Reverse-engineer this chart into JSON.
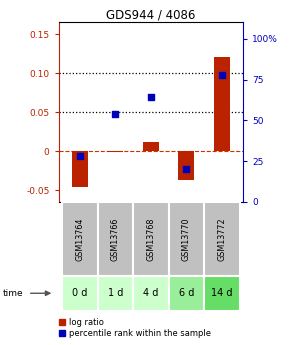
{
  "title": "GDS944 / 4086",
  "samples": [
    "GSM13764",
    "GSM13766",
    "GSM13768",
    "GSM13770",
    "GSM13772"
  ],
  "time_labels": [
    "0 d",
    "1 d",
    "4 d",
    "6 d",
    "14 d"
  ],
  "log_ratio": [
    -0.046,
    -0.001,
    0.012,
    -0.037,
    0.121
  ],
  "percentile_rank": [
    0.28,
    0.54,
    0.645,
    0.2,
    0.78
  ],
  "ylim_left": [
    -0.065,
    0.165
  ],
  "ylim_right": [
    0.0,
    1.1
  ],
  "yticks_left": [
    -0.05,
    0.0,
    0.05,
    0.1,
    0.15
  ],
  "ytick_labels_left": [
    "-0.05",
    "0",
    "0.05",
    "0.10",
    "0.15"
  ],
  "yticks_right": [
    0.0,
    0.25,
    0.5,
    0.75,
    1.0
  ],
  "ytick_labels_right": [
    "0",
    "25",
    "50",
    "75",
    "100%"
  ],
  "bar_color": "#bb2200",
  "scatter_color": "#0000bb",
  "hline_color": "#cc3300",
  "dotted_line_color": "#000000",
  "sample_bg_color": "#c0c0c0",
  "time_bg_colors": [
    "#ccffcc",
    "#ccffcc",
    "#ccffcc",
    "#99ee99",
    "#66dd66"
  ],
  "bar_width": 0.45,
  "scatter_size": 25,
  "legend_log_ratio": "log ratio",
  "legend_percentile": "percentile rank within the sample"
}
